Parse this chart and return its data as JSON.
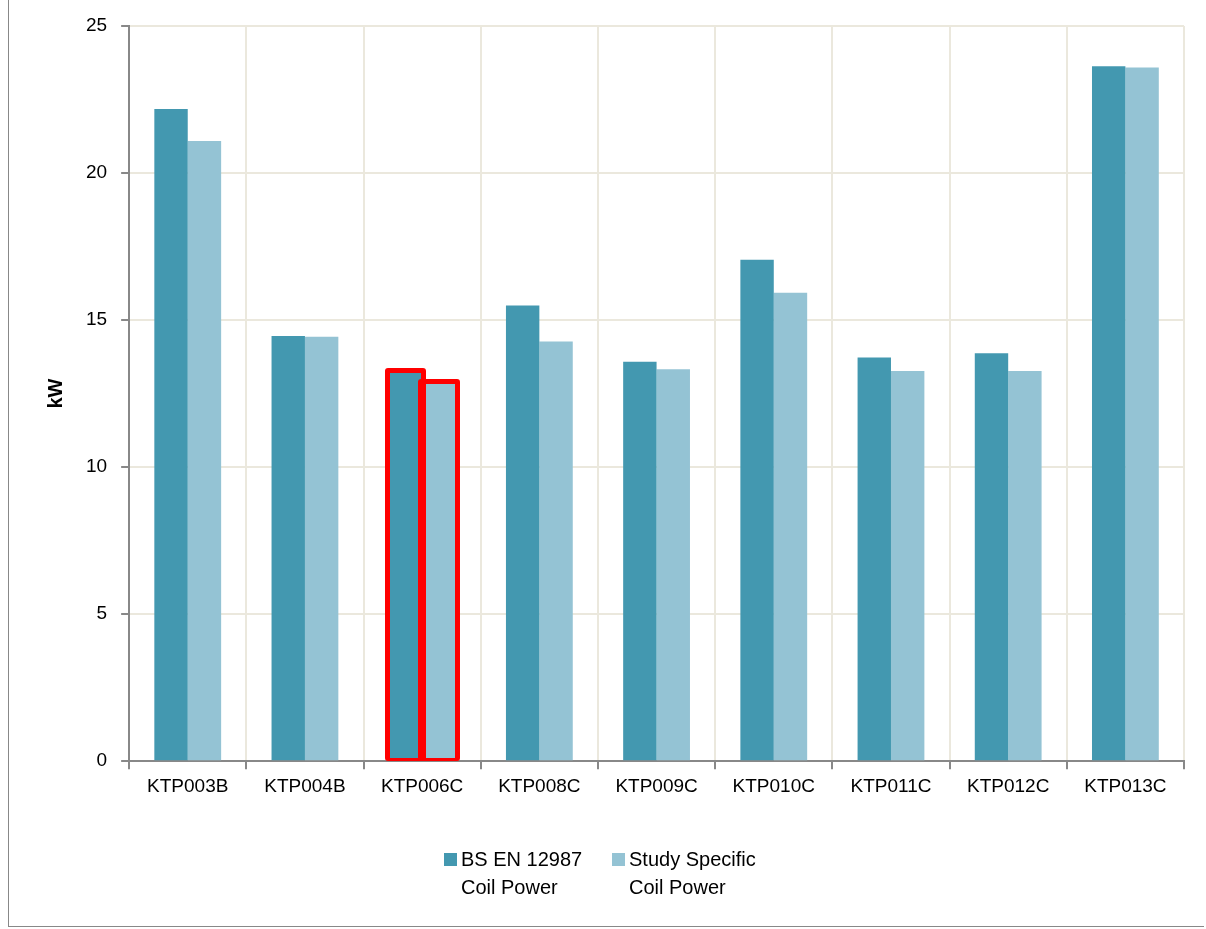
{
  "chart_data": {
    "type": "bar",
    "ylabel": "kW",
    "categories": [
      "KTP003B",
      "KTP004B",
      "KTP006C",
      "KTP008C",
      "KTP009C",
      "KTP010C",
      "KTP011C",
      "KTP012C",
      "KTP013C"
    ],
    "series": [
      {
        "name": "BS EN 12987 Coil Power",
        "color": "#4398b0",
        "values": [
          22.18,
          14.46,
          13.22,
          15.5,
          13.58,
          17.05,
          13.73,
          13.87,
          23.63
        ]
      },
      {
        "name": "Study Specific Coil Power",
        "color": "#94c3d4",
        "values": [
          21.09,
          14.43,
          12.87,
          14.27,
          13.33,
          15.93,
          13.27,
          13.27,
          23.59
        ]
      }
    ],
    "ylim": [
      0,
      25
    ],
    "yticks": [
      0,
      5,
      10,
      15,
      20,
      25
    ],
    "grid": true,
    "legend": "bottom"
  }
}
